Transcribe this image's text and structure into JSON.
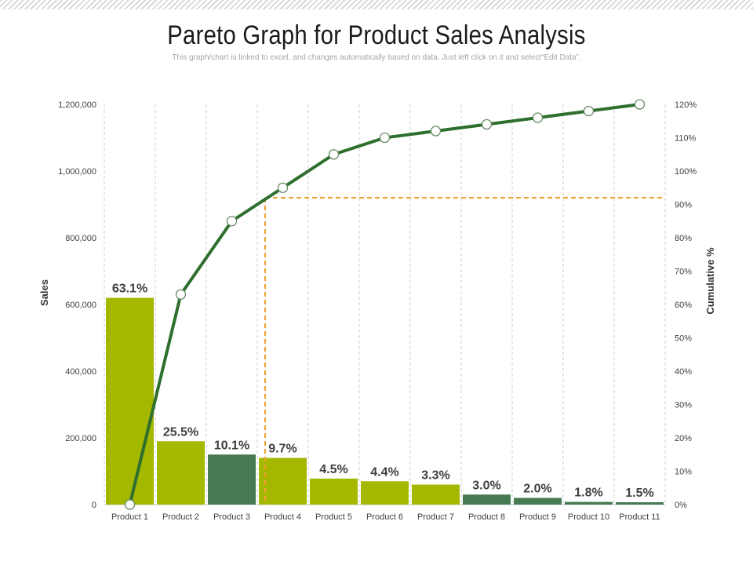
{
  "page": {
    "title": "Pareto Graph for Product Sales Analysis",
    "subtitle": "This graph/chart is linked to excel, and changes automatically based on data. Just left click on it and select“Edit Data”."
  },
  "colors": {
    "bar_light": "#a5b800",
    "bar_dark": "#467a53",
    "line": "#2e6f2e",
    "threshold": "#f0a030",
    "grid": "#d0d0d0"
  },
  "chart_data": {
    "type": "bar",
    "categories": [
      "Product 1",
      "Product 2",
      "Product 3",
      "Product 4",
      "Product 5",
      "Product 6",
      "Product 7",
      "Product 8",
      "Product 9",
      "Product 10",
      "Product 11"
    ],
    "series": [
      {
        "axis": "left",
        "type": "bar",
        "values": [
          620000,
          190000,
          150000,
          140000,
          78000,
          70000,
          60000,
          30000,
          20000,
          8000,
          7000
        ],
        "labels": [
          "63.1%",
          "25.5%",
          "10.1%",
          "9.7%",
          "4.5%",
          "4.4%",
          "3.3%",
          "3.0%",
          "2.0%",
          "1.8%",
          "1.5%"
        ],
        "shades": [
          "light",
          "light",
          "dark",
          "light",
          "light",
          "light",
          "light",
          "dark",
          "dark",
          "dark",
          "dark"
        ]
      },
      {
        "axis": "right",
        "type": "line",
        "values": [
          0,
          63,
          85,
          95,
          105,
          110,
          112,
          114,
          116,
          118,
          120
        ]
      }
    ],
    "threshold": {
      "y_right": 92,
      "x_category_index": 3
    },
    "ylabel": "Sales",
    "y2label": "Cumulative %",
    "ylim": [
      0,
      1200000
    ],
    "y2lim": [
      0,
      120
    ],
    "yticks": [
      "0",
      "200,000",
      "400,000",
      "600,000",
      "800,000",
      "1,000,000",
      "1,200,000"
    ],
    "y2ticks": [
      "0%",
      "10%",
      "20%",
      "30%",
      "40%",
      "50%",
      "60%",
      "70%",
      "80%",
      "90%",
      "100%",
      "110%",
      "120%"
    ],
    "grid": "vertical-dashed"
  }
}
